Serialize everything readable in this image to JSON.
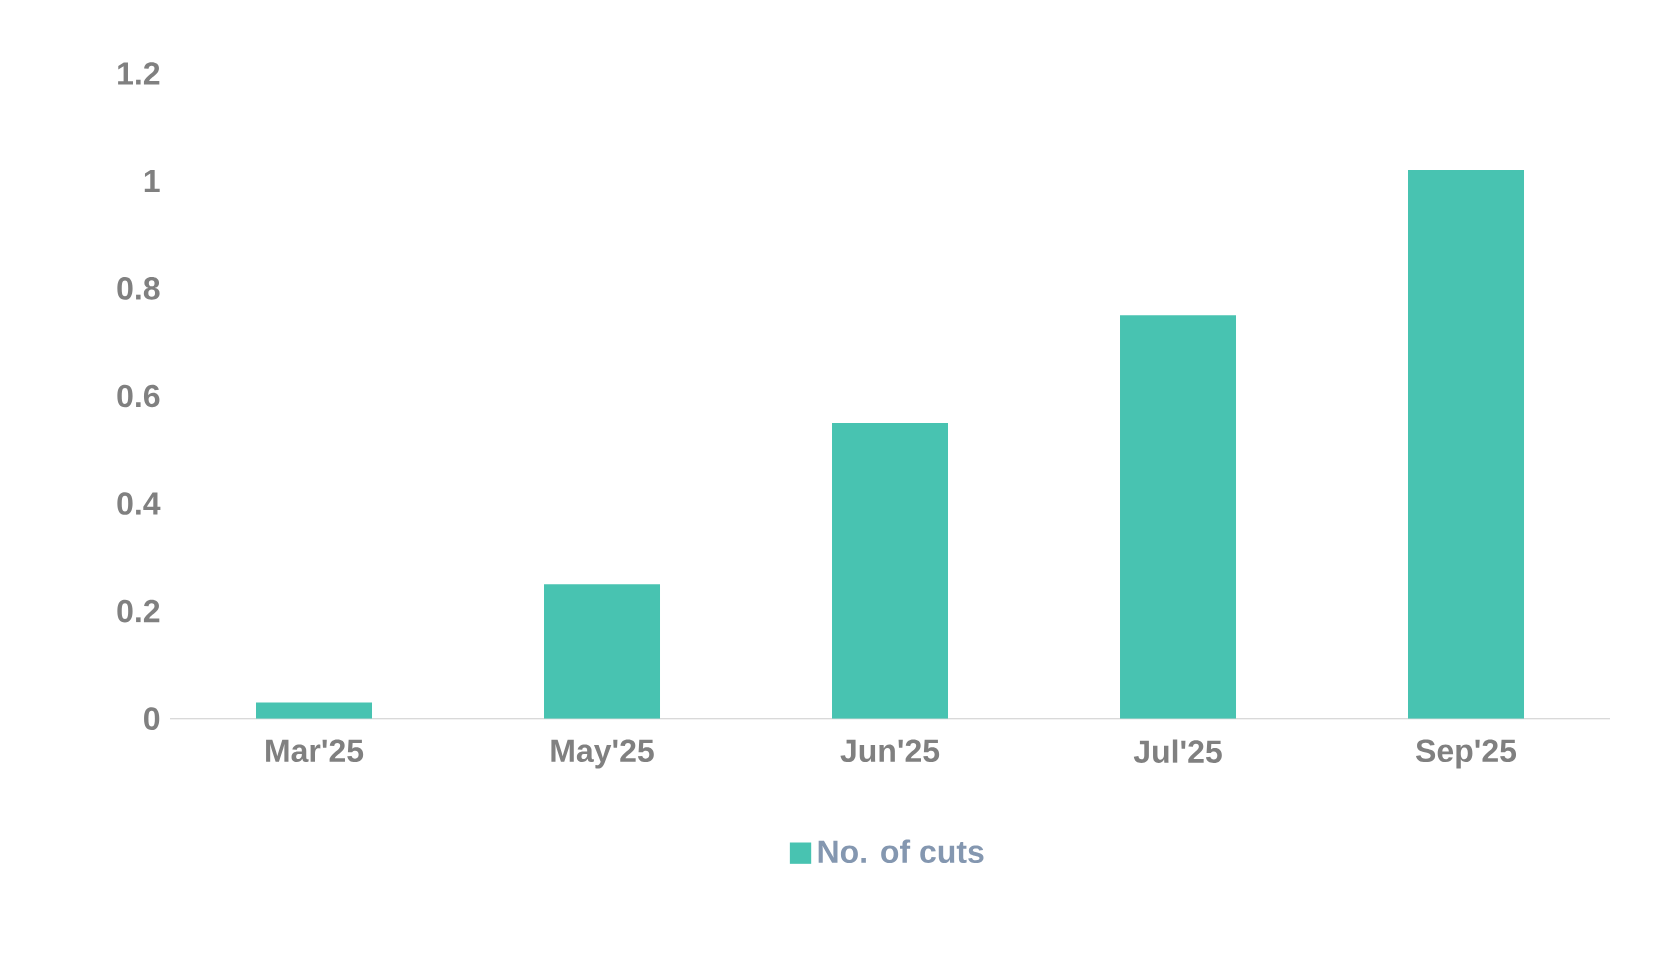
{
  "chart_data": {
    "type": "bar",
    "categories": [
      "Mar'25",
      "May'25",
      "Jun'25",
      "Jul'25",
      "Sep'25"
    ],
    "series": [
      {
        "name": "No. of cuts",
        "color": "#48c3b1",
        "values": [
          0.03,
          0.25,
          0.55,
          0.75,
          1.02
        ]
      }
    ],
    "ylim": [
      0,
      1.2
    ],
    "yticks": [
      0,
      0.2,
      0.4,
      0.6,
      0.8,
      1,
      1.2
    ],
    "grid": false,
    "legend": "bottom"
  }
}
